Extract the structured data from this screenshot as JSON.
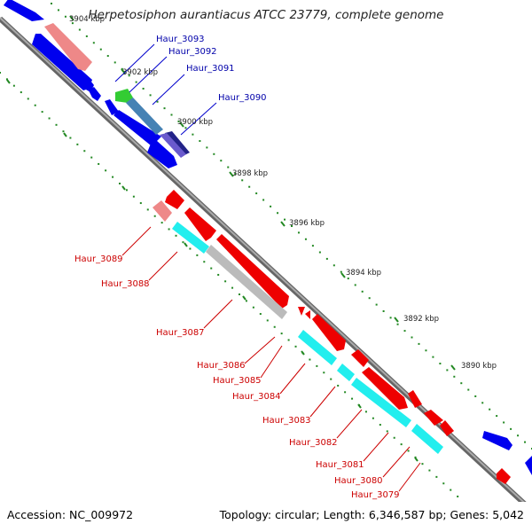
{
  "title": "Herpetosiphon aurantiacus ATCC 23779, complete genome",
  "footer": {
    "accession": "Accession: NC_009972",
    "topology": "Topology: circular; Length: 6,346,587 bp; Genes: 5,042"
  },
  "scale_ticks": [
    "3904 kbp",
    "3902 kbp",
    "3900 kbp",
    "3898 kbp",
    "3896 kbp",
    "3894 kbp",
    "3892 kbp",
    "3890 kbp"
  ],
  "colors": {
    "forward_cds": "#0000ee",
    "reverse_cds": "#ee0000",
    "forward_trna_like": "#22bb22",
    "pseudogene": "#ee8888",
    "cyan_feature": "#22eeee",
    "gray_feature": "#bbbbbb",
    "backbone": "#777777",
    "tick": "#228822"
  },
  "forward_labels": [
    "Haur_3093",
    "Haur_3092",
    "Haur_3091",
    "Haur_3090"
  ],
  "reverse_labels": [
    "Haur_3089",
    "Haur_3088",
    "Haur_3087",
    "Haur_3086",
    "Haur_3085",
    "Haur_3084",
    "Haur_3083",
    "Haur_3082",
    "Haur_3081",
    "Haur_3080",
    "Haur_3079"
  ]
}
